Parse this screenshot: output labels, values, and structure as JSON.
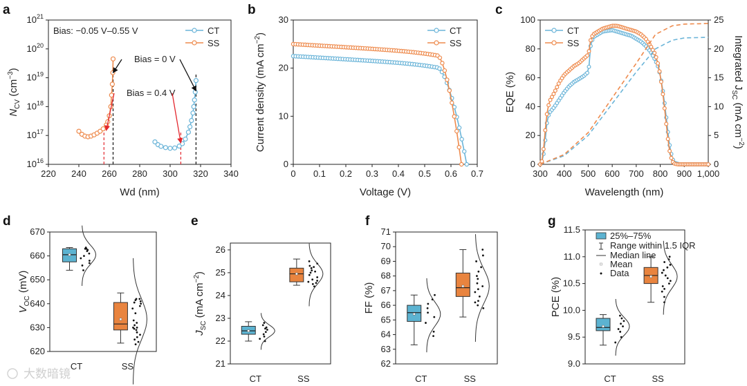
{
  "colors": {
    "CT": "#6ab4d8",
    "SS": "#ee8a4c",
    "CT_box": "#5cb3d1",
    "SS_box": "#e9843f",
    "arrow_black": "#111111",
    "arrow_red": "#e3262d"
  },
  "watermark": "大数暗镜",
  "chart_data": [
    {
      "id": "a",
      "panel": "a",
      "type": "scatter",
      "xlabel_main": "Wd (nm)",
      "ylabel_main": "N",
      "ylabel_sub": "CV",
      "ylabel_unit": " (cm",
      "ylabel_sup": "−3",
      "ylabel_close": ")",
      "xlim": [
        220,
        340
      ],
      "xticks": [
        "220",
        "240",
        "260",
        "280",
        "300",
        "320",
        "340"
      ],
      "xtick_values": [
        220,
        240,
        260,
        280,
        300,
        320,
        340
      ],
      "yscale": "log",
      "ylim": [
        1e+16,
        1e+21
      ],
      "yticks_base": "10",
      "yticks_exp": [
        "16",
        "17",
        "18",
        "19",
        "20",
        "21"
      ],
      "bias_text": "Bias: −0.05 V–0.55 V",
      "annotations": [
        {
          "text": "Bias = 0 V",
          "tip_x": 262.5,
          "tip_y": 1.5e+19,
          "color": "black"
        },
        {
          "text": "Bias = 0 V",
          "tip_x": 317,
          "tip_y": 3.5e+18,
          "color": "black"
        },
        {
          "text": "Bias = 0.4 V",
          "tip_x": 258,
          "tip_y": 1.5e+17,
          "color": "red"
        },
        {
          "text": "Bias = 0.4 V",
          "tip_x": 307,
          "tip_y": 5.5e+16,
          "color": "red"
        }
      ],
      "vlines": [
        {
          "x": 256.5,
          "color": "red"
        },
        {
          "x": 262.5,
          "color": "black"
        },
        {
          "x": 307,
          "color": "red"
        },
        {
          "x": 317,
          "color": "black"
        }
      ],
      "legend": [
        "CT",
        "SS"
      ],
      "series": [
        {
          "name": "CT",
          "x": [
            290,
            292,
            294,
            297,
            300,
            303,
            306,
            308,
            310,
            312,
            313,
            314,
            315,
            315.5,
            316,
            316.5,
            317
          ],
          "y": [
            6e+16,
            4.8e+16,
            4.2e+16,
            3.8e+16,
            3.6e+16,
            3.7e+16,
            4.3e+16,
            5.2e+16,
            7.5e+16,
            1.3e+17,
            2e+17,
            3.3e+17,
            6e+17,
            1e+18,
            1.7e+18,
            3.2e+18,
            8e+18
          ]
        },
        {
          "name": "SS",
          "x": [
            240,
            242,
            244,
            246,
            248,
            250,
            252,
            254,
            256,
            258,
            259,
            260,
            261,
            261.5,
            262,
            262.3,
            262.5
          ],
          "y": [
            1.4e+17,
            1.1e+17,
            9.5e+16,
            9e+16,
            9.5e+16,
            1.05e+17,
            1.2e+17,
            1.4e+17,
            1.7e+17,
            2.3e+17,
            3e+17,
            4.8e+17,
            1e+18,
            2.5e+18,
            6e+18,
            1.5e+19,
            4.5e+19
          ]
        }
      ]
    },
    {
      "id": "b",
      "panel": "b",
      "type": "line",
      "xlabel": "Voltage (V)",
      "ylabel_main": "Current density (mA cm",
      "ylabel_sup": "−2",
      "ylabel_close": ")",
      "xlim": [
        0,
        0.7
      ],
      "xticks": [
        "0",
        "0.1",
        "0.2",
        "0.3",
        "0.4",
        "0.5",
        "0.6",
        "0.7"
      ],
      "xtick_values": [
        0,
        0.1,
        0.2,
        0.3,
        0.4,
        0.5,
        0.6,
        0.7
      ],
      "ylim": [
        0,
        30
      ],
      "yticks": [
        "0",
        "10",
        "20",
        "30"
      ],
      "ytick_values": [
        0,
        10,
        20,
        30
      ],
      "legend": [
        "CT",
        "SS"
      ],
      "series": [
        {
          "name": "CT",
          "voc": 0.66,
          "jsc": 22.5,
          "knee": 0.55
        },
        {
          "name": "SS",
          "voc": 0.64,
          "jsc": 25.0,
          "knee": 0.55
        }
      ]
    },
    {
      "id": "c",
      "panel": "c",
      "type": "line",
      "xlabel": "Wavelength (nm)",
      "ylabel_left": "EQE (%)",
      "ylabel_right_main": "Integrated J",
      "ylabel_right_sub": "SC",
      "ylabel_right_unit": " (mA cm",
      "ylabel_right_sup": "−2",
      "ylabel_right_close": ")",
      "xlim": [
        300,
        1000
      ],
      "xticks": [
        "300",
        "400",
        "500",
        "600",
        "700",
        "800",
        "900",
        "1,000"
      ],
      "xtick_values": [
        300,
        400,
        500,
        600,
        700,
        800,
        900,
        1000
      ],
      "ylim_left": [
        0,
        100
      ],
      "yticks_left": [
        "0",
        "20",
        "40",
        "60",
        "80",
        "100"
      ],
      "ytick_values_left": [
        0,
        20,
        40,
        60,
        80,
        100
      ],
      "ylim_right": [
        0,
        25
      ],
      "yticks_right": [
        "0",
        "5",
        "10",
        "15",
        "20",
        "25"
      ],
      "ytick_values_right": [
        0,
        5,
        10,
        15,
        20,
        25
      ],
      "legend": [
        "CT",
        "SS"
      ],
      "series": [
        {
          "name": "CT",
          "x": [
            300,
            310,
            320,
            330,
            340,
            360,
            380,
            400,
            420,
            440,
            460,
            480,
            500,
            505,
            510,
            520,
            540,
            560,
            580,
            600,
            620,
            640,
            660,
            680,
            700,
            720,
            740,
            760,
            780,
            790,
            800,
            810,
            820,
            830,
            840,
            850,
            860,
            870,
            880,
            900,
            950,
            1000
          ],
          "y": [
            0,
            2,
            15,
            32,
            36,
            40,
            45,
            50,
            54,
            57,
            59,
            61,
            64,
            70,
            82,
            88,
            90,
            92,
            92.5,
            93,
            92,
            91,
            90,
            89,
            87,
            85,
            82,
            78,
            72,
            68,
            62,
            52,
            40,
            25,
            12,
            4,
            1,
            0.5,
            0,
            0,
            0,
            0
          ]
        },
        {
          "name": "SS",
          "x": [
            300,
            310,
            320,
            330,
            340,
            360,
            380,
            400,
            420,
            440,
            460,
            480,
            500,
            505,
            510,
            520,
            540,
            560,
            580,
            600,
            620,
            640,
            660,
            680,
            700,
            720,
            740,
            760,
            780,
            790,
            800,
            810,
            820,
            830,
            840,
            850,
            860,
            870,
            880,
            900,
            950,
            1000
          ],
          "y": [
            0,
            3,
            22,
            38,
            44,
            50,
            57,
            62,
            65,
            68,
            70,
            73,
            76,
            80,
            86,
            90,
            92,
            94,
            95,
            96,
            96,
            95,
            94,
            93,
            92,
            90,
            87,
            82,
            76,
            70,
            62,
            50,
            36,
            20,
            8,
            2,
            0.5,
            0,
            0,
            0,
            0,
            0
          ]
        },
        {
          "name": "CT Jsc",
          "x": [
            300,
            400,
            500,
            600,
            700,
            780,
            850,
            900,
            1000
          ],
          "y": [
            0,
            1.5,
            5,
            10.5,
            16,
            20,
            21.5,
            21.9,
            22.0
          ]
        },
        {
          "name": "SS Jsc",
          "x": [
            300,
            400,
            500,
            600,
            700,
            780,
            850,
            900,
            1000
          ],
          "y": [
            0,
            1.7,
            5.5,
            11.5,
            17.5,
            22.5,
            24,
            24.3,
            24.4
          ]
        }
      ]
    },
    {
      "id": "d",
      "panel": "d",
      "type": "box",
      "ylabel_main": "V",
      "ylabel_sub": "OC",
      "ylabel_unit": " (mV)",
      "ylim": [
        620,
        670
      ],
      "yticks": [
        "620",
        "630",
        "640",
        "650",
        "660",
        "670"
      ],
      "ytick_values": [
        620,
        630,
        640,
        650,
        660,
        670
      ],
      "categories": [
        "CT",
        "SS"
      ],
      "boxes": [
        {
          "q1": 657.5,
          "median": 660.5,
          "q3": 663,
          "mean": 660.5,
          "whisker_low": 654,
          "whisker_high": 663.5,
          "points": [
            654,
            656,
            657,
            658,
            659,
            660,
            661,
            662,
            662.5,
            663,
            663.5,
            663
          ]
        },
        {
          "q1": 629,
          "median": 631.5,
          "q3": 640.5,
          "mean": 633.5,
          "whisker_low": 623.5,
          "whisker_high": 644.5,
          "points": [
            623,
            624,
            625,
            626,
            627,
            628,
            629,
            629.5,
            630,
            630,
            631,
            632,
            633,
            636,
            638,
            639,
            640,
            640.5,
            641,
            641.5,
            642,
            642
          ]
        }
      ]
    },
    {
      "id": "e",
      "panel": "e",
      "type": "box",
      "ylabel_main": "J",
      "ylabel_sub": "SC",
      "ylabel_unit": " (mA cm",
      "ylabel_sup": "−2",
      "ylabel_close": ")",
      "ylim": [
        21,
        26.3
      ],
      "yticks": [
        "21",
        "22",
        "23",
        "24",
        "25",
        "26"
      ],
      "ytick_values": [
        21,
        22,
        23,
        24,
        25,
        26
      ],
      "categories": [
        "CT",
        "SS"
      ],
      "boxes": [
        {
          "q1": 22.3,
          "median": 22.45,
          "q3": 22.65,
          "mean": 22.45,
          "whisker_low": 22.0,
          "whisker_high": 22.85,
          "points": [
            22.0,
            22.1,
            22.2,
            22.3,
            22.4,
            22.5,
            22.55,
            22.6,
            22.7,
            22.8
          ]
        },
        {
          "q1": 24.6,
          "median": 24.95,
          "q3": 25.2,
          "mean": 24.95,
          "whisker_low": 24.45,
          "whisker_high": 25.6,
          "points": [
            24.4,
            24.5,
            24.55,
            24.6,
            24.7,
            24.8,
            24.9,
            25.0,
            25.05,
            25.1,
            25.2,
            25.25,
            25.3,
            25.5,
            25.4,
            24.65
          ]
        }
      ]
    },
    {
      "id": "f",
      "panel": "f",
      "type": "box",
      "ylabel": "FF (%)",
      "ylim": [
        62,
        71
      ],
      "yticks": [
        "62",
        "63",
        "64",
        "65",
        "66",
        "67",
        "68",
        "69",
        "70",
        "71"
      ],
      "ytick_values": [
        62,
        63,
        64,
        65,
        66,
        67,
        68,
        69,
        70,
        71
      ],
      "categories": [
        "CT",
        "SS"
      ],
      "boxes": [
        {
          "q1": 64.9,
          "median": 65.5,
          "q3": 66.0,
          "mean": 65.4,
          "whisker_low": 63.3,
          "whisker_high": 66.7,
          "points": [
            63.9,
            64.2,
            64.8,
            65.2,
            65.5,
            65.8,
            66.1,
            66.4,
            66.7
          ]
        },
        {
          "q1": 66.6,
          "median": 67.2,
          "q3": 68.2,
          "mean": 67.3,
          "whisker_low": 65.2,
          "whisker_high": 69.8,
          "points": [
            65.8,
            66.0,
            66.3,
            66.6,
            66.9,
            67.1,
            67.3,
            67.5,
            67.8,
            68.0,
            68.3,
            68.6,
            69.0,
            69.4,
            69.8,
            66.2
          ]
        }
      ]
    },
    {
      "id": "g",
      "panel": "g",
      "type": "box",
      "ylabel": "PCE (%)",
      "ylim": [
        9.0,
        11.5
      ],
      "yticks": [
        "9.0",
        "9.5",
        "10.0",
        "10.5",
        "11.0",
        "11.5"
      ],
      "ytick_values": [
        9.0,
        9.5,
        10.0,
        10.5,
        11.0,
        11.5
      ],
      "categories": [
        "CT",
        "SS"
      ],
      "legend": [
        "25%–75%",
        "Range within 1.5 IQR",
        "Median line",
        "Mean",
        "Data"
      ],
      "boxes": [
        {
          "q1": 9.62,
          "median": 9.68,
          "q3": 9.85,
          "mean": 9.7,
          "whisker_low": 9.35,
          "whisker_high": 9.92,
          "points": [
            9.4,
            9.5,
            9.6,
            9.65,
            9.7,
            9.75,
            9.8,
            9.85,
            9.9
          ]
        },
        {
          "q1": 10.5,
          "median": 10.65,
          "q3": 10.8,
          "mean": 10.63,
          "whisker_low": 10.15,
          "whisker_high": 11.0,
          "points": [
            10.15,
            10.25,
            10.35,
            10.45,
            10.5,
            10.55,
            10.6,
            10.65,
            10.7,
            10.75,
            10.8,
            10.85,
            10.9,
            10.95,
            11.0,
            10.4
          ]
        }
      ]
    }
  ]
}
